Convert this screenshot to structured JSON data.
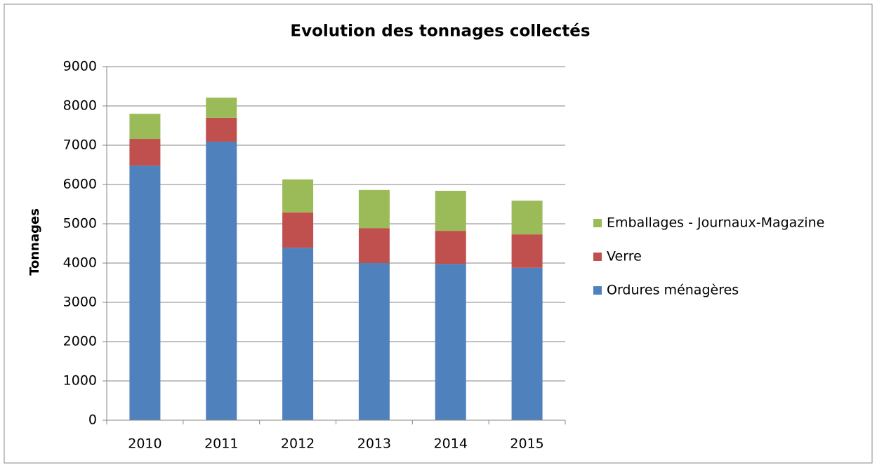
{
  "chart_data": {
    "type": "stacked_bar",
    "title": "Evolution des tonnages collectés",
    "y_label": "Tonnages",
    "categories": [
      "2010",
      "2011",
      "2012",
      "2013",
      "2014",
      "2015"
    ],
    "series": [
      {
        "name": "Ordures ménagères",
        "color": "#4f81bd",
        "values": [
          6480,
          7090,
          4390,
          4000,
          3980,
          3880
        ]
      },
      {
        "name": "Verre",
        "color": "#c0504d",
        "values": [
          680,
          610,
          900,
          890,
          840,
          850
        ]
      },
      {
        "name": "Emballages - Journaux-Magazine",
        "color": "#9bbb59",
        "values": [
          640,
          510,
          840,
          970,
          1020,
          860
        ]
      }
    ],
    "ylim": [
      0,
      9000
    ],
    "yticks": [
      0,
      1000,
      2000,
      3000,
      4000,
      5000,
      6000,
      7000,
      8000,
      9000
    ],
    "grid": true,
    "legend": "right"
  }
}
